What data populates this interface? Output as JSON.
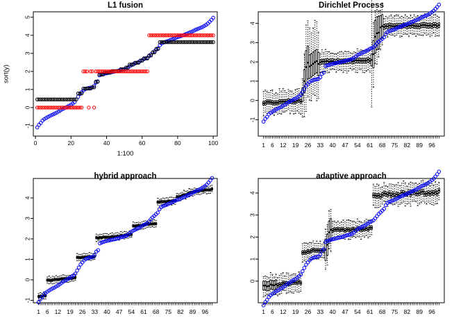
{
  "colors": {
    "sorted_points": "#0000ff",
    "estimate_points": "#000000",
    "truth_points": "#ff0000",
    "box_outline": "#000000",
    "background": "#ffffff"
  },
  "sorted_values": [
    -1.1,
    -0.95,
    -0.85,
    -0.72,
    -0.64,
    -0.58,
    -0.52,
    -0.47,
    -0.42,
    -0.38,
    -0.33,
    -0.28,
    -0.22,
    -0.16,
    -0.1,
    -0.05,
    0.0,
    0.05,
    0.1,
    0.16,
    0.22,
    0.3,
    0.45,
    0.6,
    0.75,
    0.85,
    0.95,
    1.02,
    1.06,
    1.08,
    1.1,
    1.12,
    1.2,
    1.38,
    1.45,
    1.78,
    1.82,
    1.85,
    1.88,
    1.9,
    1.92,
    1.94,
    1.96,
    1.98,
    2.0,
    2.02,
    2.05,
    2.08,
    2.1,
    2.12,
    2.15,
    2.2,
    2.28,
    2.35,
    2.4,
    2.44,
    2.48,
    2.52,
    2.58,
    2.62,
    2.68,
    2.72,
    2.76,
    2.85,
    2.95,
    3.05,
    3.12,
    3.2,
    3.28,
    3.45,
    3.55,
    3.6,
    3.63,
    3.66,
    3.7,
    3.74,
    3.78,
    3.82,
    3.86,
    3.9,
    3.93,
    3.96,
    4.0,
    4.04,
    4.08,
    4.12,
    4.16,
    4.2,
    4.25,
    4.3,
    4.34,
    4.38,
    4.42,
    4.46,
    4.52,
    4.58,
    4.65,
    4.75,
    4.85,
    4.97
  ],
  "chart_data": [
    {
      "type": "scatter",
      "title": "L1 fusion",
      "xlabel": "1:100",
      "ylabel": "sort(y)",
      "xlim": [
        -1.2,
        102.3
      ],
      "ylim": [
        -1.58,
        5.3
      ],
      "xticks": [
        0,
        20,
        40,
        60,
        80,
        100
      ],
      "yticks": [
        -1,
        0,
        1,
        2,
        3,
        4,
        5
      ],
      "grid": false,
      "legend": false,
      "series": [
        {
          "name": "sorted data",
          "marker": "circle-open",
          "color": "#0000ff",
          "use": "sorted_values"
        },
        {
          "name": "L1 fusion estimate",
          "marker": "circle-open",
          "color": "#000000",
          "values": [
            0.45,
            0.45,
            0.45,
            0.45,
            0.45,
            0.45,
            0.45,
            0.45,
            0.45,
            0.45,
            0.45,
            0.45,
            0.45,
            0.45,
            0.45,
            0.45,
            0.45,
            0.45,
            0.45,
            0.45,
            0.45,
            0.45,
            0.45,
            0.78,
            0.78,
            0.78,
            1.05,
            1.05,
            1.05,
            1.05,
            1.05,
            1.12,
            1.12,
            1.43,
            1.43,
            1.83,
            1.83,
            1.83,
            1.93,
            1.93,
            1.93,
            1.93,
            2.02,
            2.02,
            2.02,
            2.02,
            2.02,
            2.12,
            2.12,
            2.12,
            2.22,
            2.22,
            2.38,
            2.38,
            2.38,
            2.48,
            2.48,
            2.48,
            2.6,
            2.6,
            2.72,
            2.72,
            2.72,
            2.88,
            2.88,
            3.06,
            3.06,
            3.25,
            3.25,
            3.62,
            3.62,
            3.62,
            3.62,
            3.62,
            3.62,
            3.62,
            3.62,
            3.62,
            3.62,
            3.62,
            3.62,
            3.62,
            3.62,
            3.62,
            3.62,
            3.62,
            3.62,
            3.62,
            3.62,
            3.62,
            3.62,
            3.62,
            3.62,
            3.62,
            3.62,
            3.62,
            3.62,
            3.62,
            3.62,
            3.62
          ]
        },
        {
          "name": "true cluster means",
          "marker": "circle-open",
          "color": "#ff0000",
          "values": [
            0,
            0,
            0,
            0,
            0,
            0,
            0,
            0,
            0,
            0,
            0,
            0,
            0,
            0,
            0,
            0,
            0,
            0,
            0,
            0,
            0,
            0,
            0,
            0,
            0,
            0,
            2,
            2,
            2,
            0,
            2,
            2,
            0,
            2,
            2,
            2,
            2,
            2,
            2,
            2,
            2,
            2,
            2,
            2,
            2,
            2,
            2,
            2,
            2,
            2,
            2,
            2,
            2,
            2,
            2,
            2,
            2,
            2,
            2,
            2,
            2,
            2,
            2,
            4,
            4,
            4,
            4,
            4,
            4,
            4,
            4,
            4,
            4,
            4,
            4,
            4,
            4,
            4,
            4,
            4,
            4,
            4,
            4,
            4,
            4,
            4,
            4,
            4,
            4,
            4,
            4,
            4,
            4,
            4,
            4,
            4,
            4,
            4,
            4,
            4
          ]
        }
      ]
    },
    {
      "type": "boxplot",
      "title": "Dirichlet Process",
      "xlabel": "",
      "ylabel": "",
      "xlim": [
        -2,
        103
      ],
      "ylim": [
        -1.85,
        4.6
      ],
      "yticks": [
        -1,
        0,
        1,
        2,
        3,
        4
      ],
      "xtick_labels": [
        1,
        6,
        12,
        19,
        26,
        33,
        40,
        47,
        54,
        61,
        68,
        75,
        82,
        89,
        96
      ],
      "n_boxes": 100,
      "box_segments": [
        {
          "from": 1,
          "to": 22,
          "median_start": -0.12,
          "median_end": -0.02,
          "iqr_half": 0.1,
          "whisker_half": 0.55,
          "jitter": 0.05
        },
        {
          "from": 23,
          "to": 23,
          "median_start": 0.3,
          "median_end": 0.3,
          "iqr_half": 0.35,
          "whisker_half": 1.0,
          "jitter": 0
        },
        {
          "from": 24,
          "to": 24,
          "median_start": 1.0,
          "median_end": 1.0,
          "iqr_half": 0.6,
          "whisker_half": 1.6,
          "jitter": 0
        },
        {
          "from": 25,
          "to": 26,
          "median_start": 1.8,
          "median_end": 1.88,
          "iqr_half": 0.85,
          "whisker_half": 2.2,
          "jitter": 0.1
        },
        {
          "from": 27,
          "to": 32,
          "median_start": 1.9,
          "median_end": 1.92,
          "iqr_half": 0.6,
          "whisker_half": 1.8,
          "jitter": 0.15
        },
        {
          "from": 33,
          "to": 61,
          "median_start": 2.0,
          "median_end": 2.08,
          "iqr_half": 0.12,
          "whisker_half": 0.5,
          "jitter": 0.04
        },
        {
          "from": 62,
          "to": 62,
          "median_start": 2.1,
          "median_end": 2.1,
          "iqr_half": 0.3,
          "whisker_half": 2.9,
          "jitter": 0
        },
        {
          "from": 63,
          "to": 63,
          "median_start": 2.4,
          "median_end": 2.4,
          "iqr_half": 0.7,
          "whisker_half": 1.7,
          "jitter": 0
        },
        {
          "from": 64,
          "to": 66,
          "median_start": 3.3,
          "median_end": 3.6,
          "iqr_half": 0.85,
          "whisker_half": 1.3,
          "jitter": 0.1
        },
        {
          "from": 67,
          "to": 68,
          "median_start": 3.75,
          "median_end": 3.82,
          "iqr_half": 0.6,
          "whisker_half": 1.0,
          "jitter": 0.08
        },
        {
          "from": 69,
          "to": 100,
          "median_start": 3.85,
          "median_end": 3.9,
          "iqr_half": 0.12,
          "whisker_half": 0.48,
          "jitter": 0.04
        }
      ],
      "overlay": {
        "name": "sorted data",
        "marker": "circle-open",
        "color": "#0000ff",
        "use": "sorted_values"
      }
    },
    {
      "type": "boxplot",
      "title": "hybrid approach",
      "xlabel": "",
      "ylabel": "",
      "xlim": [
        -2,
        103
      ],
      "ylim": [
        -1.12,
        4.95
      ],
      "yticks": [
        -1,
        0,
        1,
        2,
        3,
        4
      ],
      "xtick_labels": [
        1,
        6,
        12,
        19,
        26,
        33,
        40,
        47,
        54,
        61,
        68,
        75,
        82,
        89,
        96
      ],
      "n_boxes": 100,
      "box_segments": [
        {
          "from": 1,
          "to": 5,
          "median_start": -0.82,
          "median_end": -0.78,
          "iqr_half": 0.05,
          "whisker_half": 0.16,
          "jitter": 0.02
        },
        {
          "from": 6,
          "to": 22,
          "median_start": -0.03,
          "median_end": 0.1,
          "iqr_half": 0.05,
          "whisker_half": 0.16,
          "jitter": 0.02
        },
        {
          "from": 23,
          "to": 33,
          "median_start": 1.08,
          "median_end": 1.15,
          "iqr_half": 0.05,
          "whisker_half": 0.16,
          "jitter": 0.02
        },
        {
          "from": 34,
          "to": 47,
          "median_start": 2.05,
          "median_end": 2.12,
          "iqr_half": 0.05,
          "whisker_half": 0.16,
          "jitter": 0.02
        },
        {
          "from": 48,
          "to": 54,
          "median_start": 2.15,
          "median_end": 2.22,
          "iqr_half": 0.05,
          "whisker_half": 0.16,
          "jitter": 0.02
        },
        {
          "from": 55,
          "to": 68,
          "median_start": 2.62,
          "median_end": 2.75,
          "iqr_half": 0.05,
          "whisker_half": 0.16,
          "jitter": 0.02
        },
        {
          "from": 69,
          "to": 79,
          "median_start": 3.79,
          "median_end": 3.86,
          "iqr_half": 0.05,
          "whisker_half": 0.16,
          "jitter": 0.02
        },
        {
          "from": 80,
          "to": 88,
          "median_start": 4.05,
          "median_end": 4.25,
          "iqr_half": 0.05,
          "whisker_half": 0.18,
          "jitter": 0.03
        },
        {
          "from": 89,
          "to": 100,
          "median_start": 4.3,
          "median_end": 4.42,
          "iqr_half": 0.05,
          "whisker_half": 0.16,
          "jitter": 0.02
        }
      ],
      "overlay": {
        "name": "sorted data",
        "marker": "circle-open",
        "color": "#0000ff",
        "use": "sorted_values"
      }
    },
    {
      "type": "boxplot",
      "title": "adaptive approach",
      "xlabel": "",
      "ylabel": "",
      "xlim": [
        -2,
        103
      ],
      "ylim": [
        -0.98,
        4.66
      ],
      "yticks": [
        0,
        1,
        2,
        3,
        4
      ],
      "xtick_labels": [
        1,
        6,
        12,
        19,
        26,
        33,
        40,
        47,
        54,
        61,
        68,
        75,
        82,
        89,
        96
      ],
      "n_boxes": 100,
      "box_segments": [
        {
          "from": 1,
          "to": 8,
          "median_start": -0.22,
          "median_end": -0.15,
          "iqr_half": 0.2,
          "whisker_half": 0.45,
          "jitter": 0.05
        },
        {
          "from": 9,
          "to": 22,
          "median_start": -0.15,
          "median_end": -0.05,
          "iqr_half": 0.08,
          "whisker_half": 0.4,
          "jitter": 0.05
        },
        {
          "from": 23,
          "to": 35,
          "median_start": 1.33,
          "median_end": 1.42,
          "iqr_half": 0.08,
          "whisker_half": 0.35,
          "jitter": 0.05
        },
        {
          "from": 36,
          "to": 37,
          "median_start": 1.45,
          "median_end": 1.6,
          "iqr_half": 0.48,
          "whisker_half": 0.95,
          "jitter": 0.05
        },
        {
          "from": 38,
          "to": 39,
          "median_start": 2.25,
          "median_end": 2.3,
          "iqr_half": 0.5,
          "whisker_half": 0.8,
          "jitter": 0.05
        },
        {
          "from": 40,
          "to": 62,
          "median_start": 2.3,
          "median_end": 2.4,
          "iqr_half": 0.08,
          "whisker_half": 0.36,
          "jitter": 0.05
        },
        {
          "from": 63,
          "to": 100,
          "median_start": 3.88,
          "median_end": 4.05,
          "iqr_half": 0.1,
          "whisker_half": 0.45,
          "jitter": 0.08
        }
      ],
      "overlay": {
        "name": "sorted data",
        "marker": "circle-open",
        "color": "#0000ff",
        "use": "sorted_values"
      }
    }
  ]
}
